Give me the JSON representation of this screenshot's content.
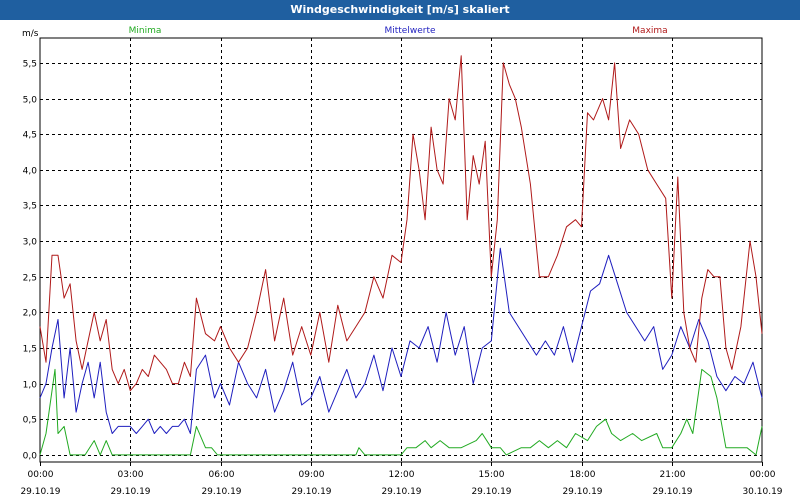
{
  "window": {
    "title": "Windgeschwindigkeit [m/s] skaliert"
  },
  "chart_data": {
    "type": "line",
    "title": "Windgeschwindigkeit [m/s] skaliert",
    "ylabel": "m/s",
    "ylim": [
      -0.1,
      5.85
    ],
    "y_ticks": [
      0.0,
      0.5,
      1.0,
      1.5,
      2.0,
      2.5,
      3.0,
      3.5,
      4.0,
      4.5,
      5.0,
      5.5
    ],
    "y_tick_labels": [
      "0,0",
      "0,5",
      "1,0",
      "1,5",
      "2,0",
      "2,5",
      "3,0",
      "3,5",
      "4,0",
      "4,5",
      "5,0",
      "5,5"
    ],
    "xlim_hours": [
      0,
      24
    ],
    "x_ticks": [
      {
        "hour": 0,
        "time": "00:00",
        "date": "29.10.19"
      },
      {
        "hour": 3,
        "time": "03:00",
        "date": "29.10.19"
      },
      {
        "hour": 6,
        "time": "06:00",
        "date": "29.10.19"
      },
      {
        "hour": 9,
        "time": "09:00",
        "date": "29.10.19"
      },
      {
        "hour": 12,
        "time": "12:00",
        "date": "29.10.19"
      },
      {
        "hour": 15,
        "time": "15:00",
        "date": "29.10.19"
      },
      {
        "hour": 18,
        "time": "18:00",
        "date": "29.10.19"
      },
      {
        "hour": 21,
        "time": "21:00",
        "date": "29.10.19"
      },
      {
        "hour": 24,
        "time": "00:00",
        "date": "30.10.19"
      }
    ],
    "grid": true,
    "legend_placement": "top",
    "series": [
      {
        "name": "Minima",
        "color": "#22aa22",
        "points": [
          [
            0,
            0
          ],
          [
            0.2,
            0.3
          ],
          [
            0.5,
            1.2
          ],
          [
            0.6,
            0.3
          ],
          [
            0.8,
            0.4
          ],
          [
            1.0,
            0
          ],
          [
            1.5,
            0
          ],
          [
            1.8,
            0.2
          ],
          [
            2.0,
            0
          ],
          [
            2.2,
            0.2
          ],
          [
            2.4,
            0
          ],
          [
            3.0,
            0
          ],
          [
            4.0,
            0
          ],
          [
            5.0,
            0
          ],
          [
            5.2,
            0.4
          ],
          [
            5.5,
            0.1
          ],
          [
            5.7,
            0.1
          ],
          [
            5.9,
            0
          ],
          [
            8.0,
            0
          ],
          [
            10.0,
            0
          ],
          [
            10.5,
            0
          ],
          [
            10.6,
            0.1
          ],
          [
            10.8,
            0
          ],
          [
            12.0,
            0
          ],
          [
            12.2,
            0.1
          ],
          [
            12.5,
            0.1
          ],
          [
            12.8,
            0.2
          ],
          [
            13.0,
            0.1
          ],
          [
            13.3,
            0.2
          ],
          [
            13.6,
            0.1
          ],
          [
            14.0,
            0.1
          ],
          [
            14.5,
            0.2
          ],
          [
            14.7,
            0.3
          ],
          [
            15.0,
            0.1
          ],
          [
            15.3,
            0.1
          ],
          [
            15.5,
            0
          ],
          [
            16.0,
            0.1
          ],
          [
            16.3,
            0.1
          ],
          [
            16.6,
            0.2
          ],
          [
            16.9,
            0.1
          ],
          [
            17.2,
            0.2
          ],
          [
            17.5,
            0.1
          ],
          [
            17.8,
            0.3
          ],
          [
            18.2,
            0.2
          ],
          [
            18.5,
            0.4
          ],
          [
            18.8,
            0.5
          ],
          [
            19.0,
            0.3
          ],
          [
            19.3,
            0.2
          ],
          [
            19.7,
            0.3
          ],
          [
            20.0,
            0.2
          ],
          [
            20.5,
            0.3
          ],
          [
            20.7,
            0.1
          ],
          [
            21.0,
            0.1
          ],
          [
            21.3,
            0.3
          ],
          [
            21.5,
            0.5
          ],
          [
            21.7,
            0.3
          ],
          [
            22.0,
            1.2
          ],
          [
            22.3,
            1.1
          ],
          [
            22.5,
            0.8
          ],
          [
            22.8,
            0.1
          ],
          [
            23.5,
            0.1
          ],
          [
            23.8,
            0
          ],
          [
            24.0,
            0.4
          ]
        ]
      },
      {
        "name": "Mittelwerte",
        "color": "#1f1fbf",
        "points": [
          [
            0,
            0.8
          ],
          [
            0.2,
            1.0
          ],
          [
            0.4,
            1.5
          ],
          [
            0.6,
            1.9
          ],
          [
            0.8,
            0.8
          ],
          [
            1.0,
            1.5
          ],
          [
            1.2,
            0.6
          ],
          [
            1.4,
            1.0
          ],
          [
            1.6,
            1.3
          ],
          [
            1.8,
            0.8
          ],
          [
            2.0,
            1.3
          ],
          [
            2.2,
            0.6
          ],
          [
            2.4,
            0.3
          ],
          [
            2.6,
            0.4
          ],
          [
            2.8,
            0.4
          ],
          [
            3.0,
            0.4
          ],
          [
            3.2,
            0.3
          ],
          [
            3.4,
            0.4
          ],
          [
            3.6,
            0.5
          ],
          [
            3.8,
            0.3
          ],
          [
            4.0,
            0.4
          ],
          [
            4.2,
            0.3
          ],
          [
            4.4,
            0.4
          ],
          [
            4.6,
            0.4
          ],
          [
            4.8,
            0.5
          ],
          [
            5.0,
            0.3
          ],
          [
            5.2,
            1.2
          ],
          [
            5.5,
            1.4
          ],
          [
            5.8,
            0.8
          ],
          [
            6.0,
            1.0
          ],
          [
            6.3,
            0.7
          ],
          [
            6.6,
            1.3
          ],
          [
            6.9,
            1.0
          ],
          [
            7.2,
            0.8
          ],
          [
            7.5,
            1.2
          ],
          [
            7.8,
            0.6
          ],
          [
            8.1,
            0.9
          ],
          [
            8.4,
            1.3
          ],
          [
            8.7,
            0.7
          ],
          [
            9.0,
            0.8
          ],
          [
            9.3,
            1.1
          ],
          [
            9.6,
            0.6
          ],
          [
            9.9,
            0.9
          ],
          [
            10.2,
            1.2
          ],
          [
            10.5,
            0.8
          ],
          [
            10.8,
            1.0
          ],
          [
            11.1,
            1.4
          ],
          [
            11.4,
            0.9
          ],
          [
            11.7,
            1.5
          ],
          [
            12.0,
            1.1
          ],
          [
            12.3,
            1.6
          ],
          [
            12.6,
            1.5
          ],
          [
            12.9,
            1.8
          ],
          [
            13.2,
            1.3
          ],
          [
            13.5,
            2.0
          ],
          [
            13.8,
            1.4
          ],
          [
            14.1,
            1.8
          ],
          [
            14.4,
            1.0
          ],
          [
            14.7,
            1.5
          ],
          [
            15.0,
            1.6
          ],
          [
            15.3,
            2.9
          ],
          [
            15.6,
            2.0
          ],
          [
            15.9,
            1.8
          ],
          [
            16.2,
            1.6
          ],
          [
            16.5,
            1.4
          ],
          [
            16.8,
            1.6
          ],
          [
            17.1,
            1.4
          ],
          [
            17.4,
            1.8
          ],
          [
            17.7,
            1.3
          ],
          [
            18.0,
            1.8
          ],
          [
            18.3,
            2.3
          ],
          [
            18.6,
            2.4
          ],
          [
            18.9,
            2.8
          ],
          [
            19.2,
            2.4
          ],
          [
            19.5,
            2.0
          ],
          [
            19.8,
            1.8
          ],
          [
            20.1,
            1.6
          ],
          [
            20.4,
            1.8
          ],
          [
            20.7,
            1.2
          ],
          [
            21.0,
            1.4
          ],
          [
            21.3,
            1.8
          ],
          [
            21.6,
            1.5
          ],
          [
            21.9,
            1.9
          ],
          [
            22.2,
            1.6
          ],
          [
            22.5,
            1.1
          ],
          [
            22.8,
            0.9
          ],
          [
            23.1,
            1.1
          ],
          [
            23.4,
            1.0
          ],
          [
            23.7,
            1.3
          ],
          [
            24.0,
            0.8
          ]
        ]
      },
      {
        "name": "Maxima",
        "color": "#b01a1a",
        "points": [
          [
            0,
            1.8
          ],
          [
            0.2,
            1.3
          ],
          [
            0.4,
            2.8
          ],
          [
            0.6,
            2.8
          ],
          [
            0.8,
            2.2
          ],
          [
            1.0,
            2.4
          ],
          [
            1.2,
            1.6
          ],
          [
            1.4,
            1.2
          ],
          [
            1.6,
            1.6
          ],
          [
            1.8,
            2.0
          ],
          [
            2.0,
            1.6
          ],
          [
            2.2,
            1.9
          ],
          [
            2.4,
            1.2
          ],
          [
            2.6,
            1.0
          ],
          [
            2.8,
            1.2
          ],
          [
            3.0,
            0.9
          ],
          [
            3.2,
            1.0
          ],
          [
            3.4,
            1.2
          ],
          [
            3.6,
            1.1
          ],
          [
            3.8,
            1.4
          ],
          [
            4.0,
            1.3
          ],
          [
            4.2,
            1.2
          ],
          [
            4.4,
            1.0
          ],
          [
            4.6,
            1.0
          ],
          [
            4.8,
            1.3
          ],
          [
            5.0,
            1.1
          ],
          [
            5.2,
            2.2
          ],
          [
            5.5,
            1.7
          ],
          [
            5.8,
            1.6
          ],
          [
            6.0,
            1.8
          ],
          [
            6.3,
            1.5
          ],
          [
            6.6,
            1.3
          ],
          [
            6.9,
            1.5
          ],
          [
            7.2,
            2.0
          ],
          [
            7.5,
            2.6
          ],
          [
            7.8,
            1.6
          ],
          [
            8.1,
            2.2
          ],
          [
            8.4,
            1.4
          ],
          [
            8.7,
            1.8
          ],
          [
            9.0,
            1.4
          ],
          [
            9.3,
            2.0
          ],
          [
            9.6,
            1.3
          ],
          [
            9.9,
            2.1
          ],
          [
            10.2,
            1.6
          ],
          [
            10.5,
            1.8
          ],
          [
            10.8,
            2.0
          ],
          [
            11.1,
            2.5
          ],
          [
            11.4,
            2.2
          ],
          [
            11.7,
            2.8
          ],
          [
            12.0,
            2.7
          ],
          [
            12.2,
            3.3
          ],
          [
            12.4,
            4.5
          ],
          [
            12.6,
            4.0
          ],
          [
            12.8,
            3.3
          ],
          [
            13.0,
            4.6
          ],
          [
            13.2,
            4.0
          ],
          [
            13.4,
            3.8
          ],
          [
            13.6,
            5.0
          ],
          [
            13.8,
            4.7
          ],
          [
            14.0,
            5.6
          ],
          [
            14.2,
            3.3
          ],
          [
            14.4,
            4.2
          ],
          [
            14.6,
            3.8
          ],
          [
            14.8,
            4.4
          ],
          [
            15.0,
            2.5
          ],
          [
            15.2,
            3.3
          ],
          [
            15.4,
            5.5
          ],
          [
            15.6,
            5.2
          ],
          [
            15.8,
            5.0
          ],
          [
            16.0,
            4.6
          ],
          [
            16.3,
            3.8
          ],
          [
            16.6,
            2.5
          ],
          [
            16.9,
            2.5
          ],
          [
            17.2,
            2.8
          ],
          [
            17.5,
            3.2
          ],
          [
            17.8,
            3.3
          ],
          [
            18.0,
            3.2
          ],
          [
            18.2,
            4.8
          ],
          [
            18.4,
            4.7
          ],
          [
            18.7,
            5.0
          ],
          [
            18.9,
            4.7
          ],
          [
            19.1,
            5.5
          ],
          [
            19.3,
            4.3
          ],
          [
            19.6,
            4.7
          ],
          [
            19.9,
            4.5
          ],
          [
            20.2,
            4.0
          ],
          [
            20.5,
            3.8
          ],
          [
            20.8,
            3.6
          ],
          [
            21.0,
            2.2
          ],
          [
            21.2,
            3.9
          ],
          [
            21.4,
            2.0
          ],
          [
            21.6,
            1.5
          ],
          [
            21.8,
            1.3
          ],
          [
            22.0,
            2.2
          ],
          [
            22.2,
            2.6
          ],
          [
            22.4,
            2.5
          ],
          [
            22.6,
            2.5
          ],
          [
            22.8,
            1.5
          ],
          [
            23.0,
            1.2
          ],
          [
            23.3,
            1.8
          ],
          [
            23.6,
            3.0
          ],
          [
            23.8,
            2.5
          ],
          [
            24.0,
            1.7
          ]
        ]
      }
    ]
  }
}
